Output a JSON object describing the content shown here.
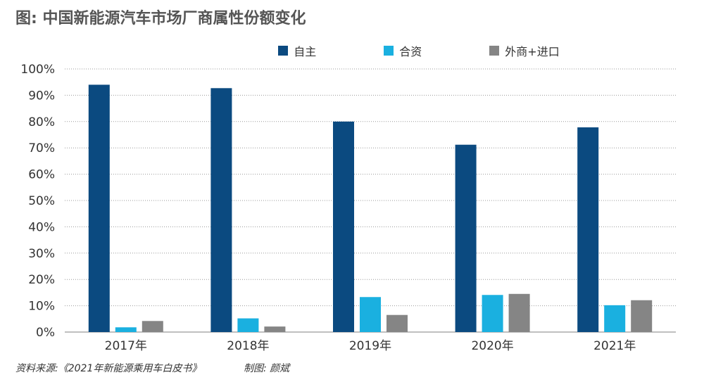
{
  "title": "图: 中国新能源汽车市场厂商属性份额变化",
  "source": "资料来源:《2021年新能源乘用车白皮书》",
  "credit": "制图: 颜斌",
  "chart_data": {
    "type": "bar",
    "categories": [
      "2017年",
      "2018年",
      "2019年",
      "2020年",
      "2021年"
    ],
    "series": [
      {
        "name": "自主",
        "color": "#0b4a80",
        "values": [
          94,
          92.7,
          80,
          71.2,
          77.8
        ]
      },
      {
        "name": "合资",
        "color": "#1ab0e0",
        "values": [
          1.8,
          5.2,
          13.3,
          14.1,
          10.2
        ]
      },
      {
        "name": "外商+进口",
        "color": "#858585",
        "values": [
          4.2,
          2.1,
          6.5,
          14.5,
          12.1
        ]
      }
    ],
    "ylim": [
      0,
      100
    ],
    "yticks": [
      "0%",
      "10%",
      "20%",
      "30%",
      "40%",
      "50%",
      "60%",
      "70%",
      "80%",
      "90%",
      "100%"
    ],
    "grid": true,
    "legend": "top-center"
  }
}
